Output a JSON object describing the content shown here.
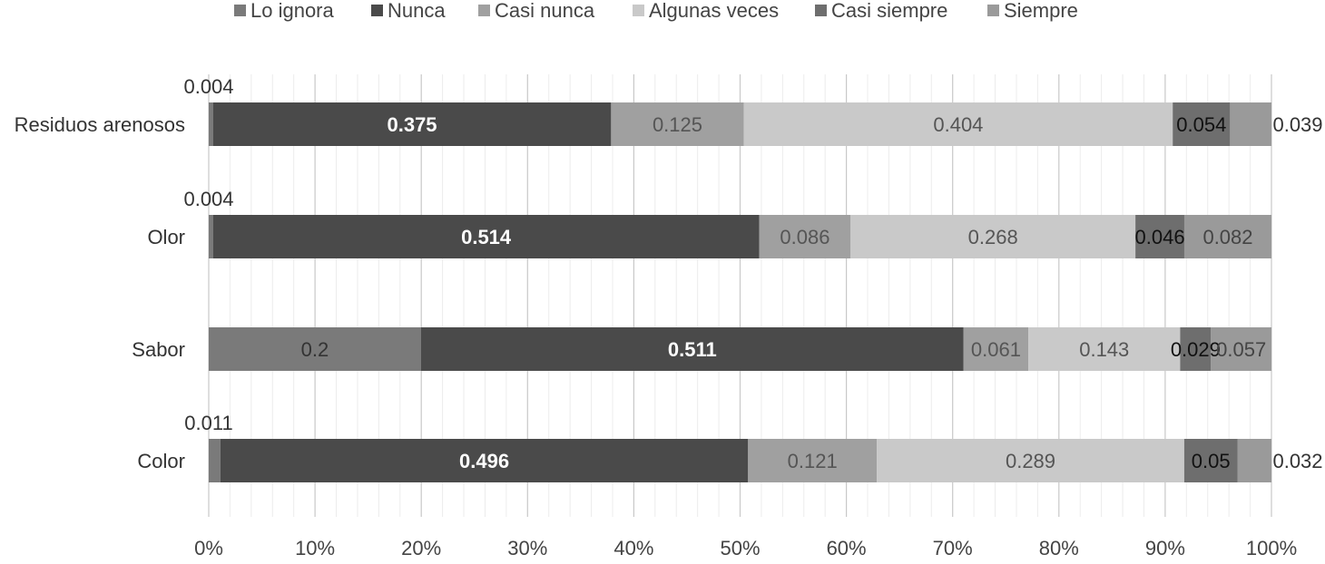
{
  "chart_data": {
    "type": "bar",
    "orientation": "horizontal",
    "stacked": "percent",
    "title": "",
    "xlabel": "",
    "ylabel": "",
    "xlim": [
      0,
      100
    ],
    "x_ticks": [
      "0%",
      "10%",
      "20%",
      "30%",
      "40%",
      "50%",
      "60%",
      "70%",
      "80%",
      "90%",
      "100%"
    ],
    "grid": "vertical",
    "legend_position": "top",
    "categories": [
      "Residuos arenosos",
      "Olor",
      "Sabor",
      "Color"
    ],
    "series": [
      {
        "name": "Lo ignora",
        "color": "#7a7a7a",
        "label_color": "#333333",
        "values": [
          0.004,
          0.004,
          0.2,
          0.011
        ]
      },
      {
        "name": "Nunca",
        "color": "#4a4a4a",
        "label_color": "#ffffff",
        "values": [
          0.375,
          0.514,
          0.511,
          0.496
        ]
      },
      {
        "name": "Casi nunca",
        "color": "#a0a0a0",
        "label_color": "#555555",
        "values": [
          0.125,
          0.086,
          0.061,
          0.121
        ]
      },
      {
        "name": "Algunas veces",
        "color": "#c9c9c9",
        "label_color": "#555555",
        "values": [
          0.404,
          0.268,
          0.143,
          0.289
        ]
      },
      {
        "name": "Casi siempre",
        "color": "#6e6e6e",
        "label_color": "#111111",
        "values": [
          0.054,
          0.046,
          0.029,
          0.05
        ]
      },
      {
        "name": "Siempre",
        "color": "#9a9a9a",
        "label_color": "#444444",
        "values": [
          0.039,
          0.082,
          0.057,
          0.032
        ]
      }
    ]
  }
}
